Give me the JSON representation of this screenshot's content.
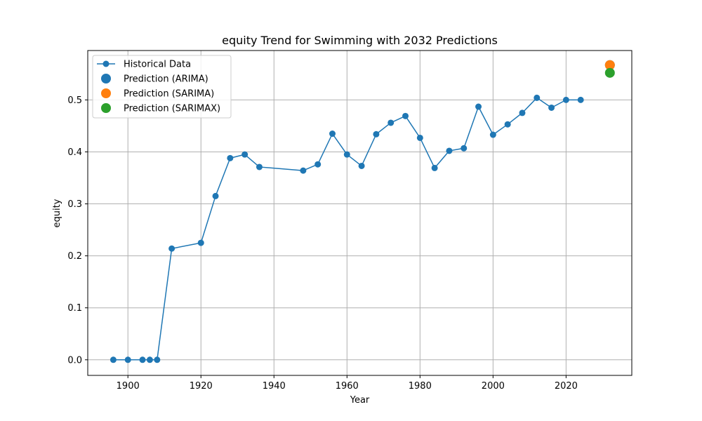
{
  "chart_data": {
    "type": "line",
    "title": "equity Trend for Swimming with 2032 Predictions",
    "xlabel": "Year",
    "ylabel": "equity",
    "xlim": [
      1889,
      2038
    ],
    "ylim": [
      -0.03,
      0.595
    ],
    "x_ticks": [
      1900,
      1920,
      1940,
      1960,
      1980,
      2000,
      2020
    ],
    "y_ticks": [
      0.0,
      0.1,
      0.2,
      0.3,
      0.4,
      0.5
    ],
    "y_tick_labels": [
      "0.0",
      "0.1",
      "0.2",
      "0.3",
      "0.4",
      "0.5"
    ],
    "grid": true,
    "legend_position": "upper-left",
    "series": [
      {
        "name": "Historical Data",
        "kind": "line-marker",
        "color": "#1f77b4",
        "x": [
          1896,
          1900,
          1904,
          1906,
          1908,
          1912,
          1920,
          1924,
          1928,
          1932,
          1936,
          1948,
          1952,
          1956,
          1960,
          1964,
          1968,
          1972,
          1976,
          1980,
          1984,
          1988,
          1992,
          1996,
          2000,
          2004,
          2008,
          2012,
          2016,
          2020,
          2024
        ],
        "y": [
          0.0,
          0.0,
          0.0,
          0.0,
          0.0,
          0.214,
          0.225,
          0.315,
          0.388,
          0.395,
          0.371,
          0.364,
          0.376,
          0.435,
          0.395,
          0.373,
          0.434,
          0.456,
          0.469,
          0.427,
          0.369,
          0.402,
          0.407,
          0.487,
          0.433,
          0.453,
          0.475,
          0.504,
          0.485,
          0.5,
          0.5
        ]
      },
      {
        "name": "Prediction (ARIMA)",
        "kind": "point",
        "color": "#1f77b4",
        "x": [
          2032
        ],
        "y": [
          0.567
        ]
      },
      {
        "name": "Prediction (SARIMA)",
        "kind": "point",
        "color": "#ff7f0e",
        "x": [
          2032
        ],
        "y": [
          0.567
        ]
      },
      {
        "name": "Prediction (SARIMAX)",
        "kind": "point",
        "color": "#2ca02c",
        "x": [
          2032
        ],
        "y": [
          0.552
        ]
      }
    ]
  }
}
